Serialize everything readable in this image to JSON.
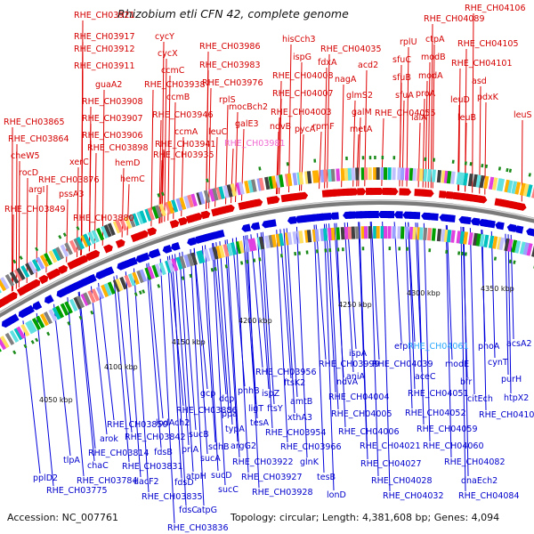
{
  "title": "Rhizobium etli CFN 42, complete genome",
  "footer": {
    "accession": "Accession: NC_007761",
    "topology": "Topology: circular; Length: 4,381,608 bp; Genes: 4,094"
  },
  "ticks": [
    "4050 kbp",
    "4100 kbp",
    "4150 kbp",
    "4200 kbp",
    "4250 kbp",
    "4300 kbp",
    "4350 kbp"
  ],
  "labels_top": [
    "RHE_CH03921",
    "RHE_CH03917",
    "RHE_CH03912",
    "RHE_CH03911",
    "guaA2",
    "RHE_CH03908",
    "RHE_CH03907",
    "RHE_CH03906",
    "RHE_CH03898",
    "hemD",
    "hemC",
    "RHE_CH03876",
    "RHE_CH03880",
    "RHE_CH03865",
    "RHE_CH03864",
    "cheW5",
    "xerC",
    "rocD",
    "argI",
    "pssA3",
    "RHE_CH03849",
    "cycY",
    "cycX",
    "ccmC",
    "RHE_CH03938",
    "ccmB",
    "RHE_CH03946",
    "ccmA",
    "RHE_CH03941",
    "RHE_CH03935",
    "rplS",
    "leuC",
    "RHE_CH03986",
    "RHE_CH03983",
    "RHE_CH03976",
    "mocBch2",
    "galE3",
    "RHE_CH03981",
    "hisCch3",
    "ispG",
    "fdxA",
    "RHE_CH04008",
    "RHE_CH04007",
    "RHE_CH04003",
    "ndvB",
    "pycA",
    "rpmF",
    "RHE_CH04035",
    "nagA",
    "acd2",
    "glmS2",
    "galM",
    "metA",
    "rplU",
    "sfuC",
    "sfuB",
    "sfuA",
    "RHE_CH04055",
    "ctpA",
    "modB",
    "modA",
    "proA",
    "ialA",
    "RHE_CH04089",
    "RHE_CH04106",
    "RHE_CH04105",
    "RHE_CH04101",
    "asd",
    "pdxK",
    "leuD",
    "leuB",
    "leuS"
  ],
  "labels_bottom": [
    "pplD2",
    "RHE_CH03775",
    "tlpA",
    "chaC",
    "RHE_CH03784",
    "arok",
    "RHE_CH03814",
    "RHE_CH03850",
    "RHE_CH03842",
    "RHE_CH03831",
    "dacF2",
    "fdsB",
    "RHE_CH03835",
    "fdsC",
    "RHE_CH03836",
    "fdsD",
    "lpdAch2",
    "priA",
    "atpH",
    "sucB",
    "sucA",
    "sucD",
    "sucC",
    "atpG",
    "RHE_CH03886",
    "gcp",
    "dcp",
    "ppa",
    "phhB",
    "typA",
    "sdhB",
    "ispZ",
    "ligT",
    "tesA",
    "argG2",
    "RHE_CH03922",
    "RHE_CH03927",
    "RHE_CH03928",
    "RHE_CH03956",
    "ftsY",
    "ftsK2",
    "RHE_CH03954",
    "amtB",
    "xthA3",
    "RHE_CH03966",
    "glnK",
    "tesB",
    "lonD",
    "ispA",
    "RHE_CH03999",
    "aniA",
    "RHE_CH04004",
    "ndvA",
    "RHE_CH04005",
    "RHE_CH04006",
    "RHE_CH04021",
    "RHE_CH04027",
    "RHE_CH04028",
    "RHE_CH04032",
    "efp",
    "RHE_CH04039",
    "RHE_CH04061",
    "aceC",
    "RHE_CH04051",
    "RHE_CH04052",
    "RHE_CH04059",
    "RHE_CH04060",
    "modE",
    "bfr",
    "citEch",
    "phoA",
    "cynT",
    "acsA2",
    "purH",
    "RHE_CH04082",
    "htpX2",
    "RHE_CH04102",
    "dnaEch2",
    "RHE_CH04084"
  ]
}
